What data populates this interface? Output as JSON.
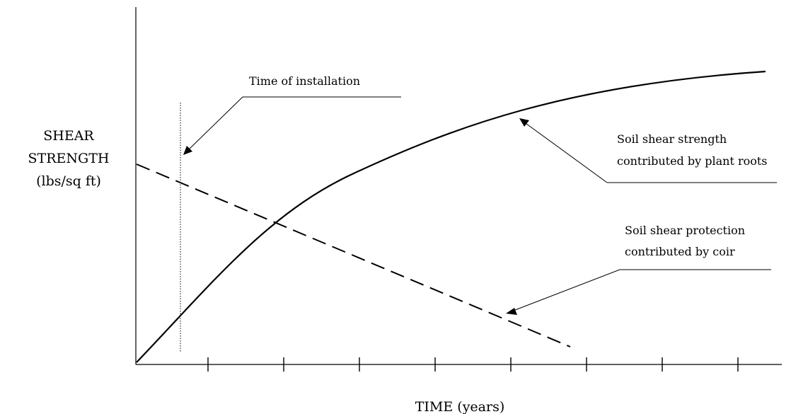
{
  "diagram": {
    "y_axis_label": [
      "SHEAR",
      "STRENGTH",
      "(lbs/sq ft)"
    ],
    "x_axis_label": "TIME (years)",
    "x_tick_count": 8,
    "annotations": {
      "installation": "Time of installation",
      "roots": [
        "Soil shear strength",
        "contributed by plant roots"
      ],
      "coir": [
        "Soil shear protection",
        "contributed by coir"
      ]
    },
    "curves": {
      "roots": {
        "name": "plant roots",
        "style": "solid"
      },
      "coir": {
        "name": "coir",
        "style": "dashed"
      }
    },
    "colors": {
      "ink": "#000000",
      "background": "#ffffff"
    }
  }
}
